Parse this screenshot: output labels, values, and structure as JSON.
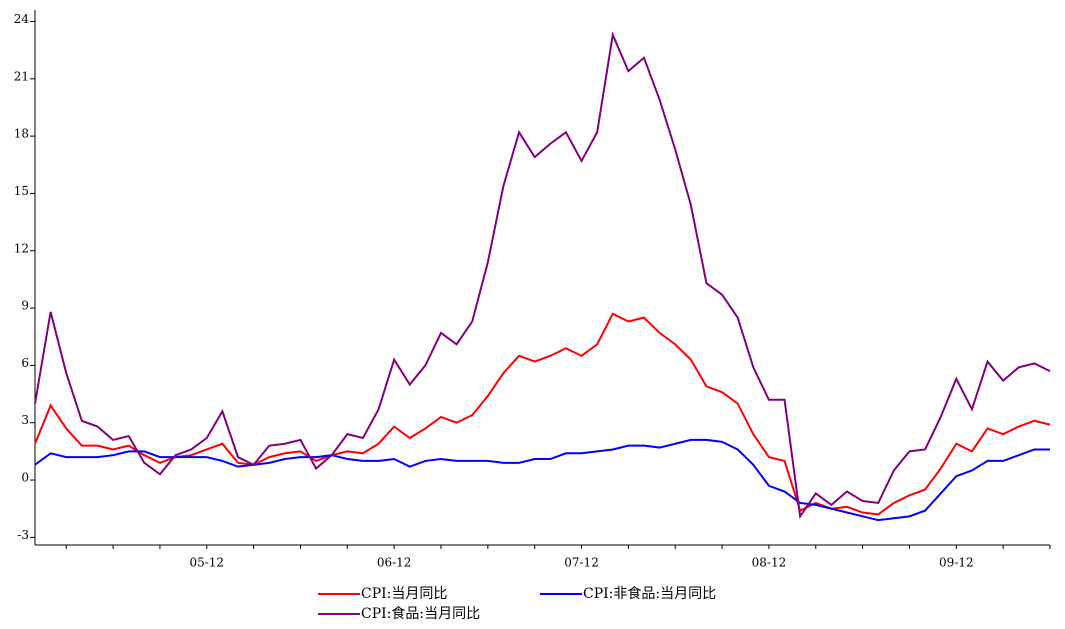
{
  "chart_data": {
    "type": "line",
    "categories": [
      null,
      null,
      null,
      null,
      null,
      null,
      null,
      null,
      null,
      null,
      null,
      "05-12",
      null,
      null,
      null,
      null,
      null,
      null,
      null,
      null,
      null,
      null,
      null,
      "06-12",
      null,
      null,
      null,
      null,
      null,
      null,
      null,
      null,
      null,
      null,
      null,
      "07-12",
      null,
      null,
      null,
      null,
      null,
      null,
      null,
      null,
      null,
      null,
      null,
      "08-12",
      null,
      null,
      null,
      null,
      null,
      null,
      null,
      null,
      null,
      null,
      null,
      "09-12",
      null,
      null,
      null,
      null,
      null,
      null
    ],
    "series": [
      {
        "name": "CPI:当月同比",
        "color": "#ff0000",
        "values": [
          1.9,
          3.9,
          2.7,
          1.8,
          1.8,
          1.6,
          1.8,
          1.3,
          0.9,
          1.2,
          1.3,
          1.6,
          1.9,
          0.9,
          0.8,
          1.2,
          1.4,
          1.5,
          1.0,
          1.3,
          1.5,
          1.4,
          1.9,
          2.8,
          2.2,
          2.7,
          3.3,
          3.0,
          3.4,
          4.4,
          5.6,
          6.5,
          6.2,
          6.5,
          6.9,
          6.5,
          7.1,
          8.7,
          8.3,
          8.5,
          7.7,
          7.1,
          6.3,
          4.9,
          4.6,
          4.0,
          2.4,
          1.2,
          1.0,
          -1.6,
          -1.2,
          -1.5,
          -1.4,
          -1.7,
          -1.8,
          -1.2,
          -0.8,
          -0.5,
          0.6,
          1.9,
          1.5,
          2.7,
          2.4,
          2.8,
          3.1,
          2.9
        ]
      },
      {
        "name": "CPI:非食品:当月同比",
        "color": "#0000ff",
        "values": [
          0.8,
          1.4,
          1.2,
          1.2,
          1.2,
          1.3,
          1.5,
          1.5,
          1.2,
          1.2,
          1.2,
          1.2,
          1.0,
          0.7,
          0.8,
          0.9,
          1.1,
          1.2,
          1.2,
          1.3,
          1.1,
          1.0,
          1.0,
          1.1,
          0.7,
          1.0,
          1.1,
          1.0,
          1.0,
          1.0,
          0.9,
          0.9,
          1.1,
          1.1,
          1.4,
          1.4,
          1.5,
          1.6,
          1.8,
          1.8,
          1.7,
          1.9,
          2.1,
          2.1,
          2.0,
          1.6,
          0.8,
          -0.3,
          -0.6,
          -1.2,
          -1.3,
          -1.5,
          -1.7,
          -1.9,
          -2.1,
          -2.0,
          -1.9,
          -1.6,
          -0.7,
          0.2,
          0.5,
          1.0,
          1.0,
          1.3,
          1.6,
          1.6
        ]
      },
      {
        "name": "CPI:食品:当月同比",
        "color": "#800080",
        "values": [
          4.0,
          8.8,
          5.6,
          3.1,
          2.8,
          2.1,
          2.3,
          0.9,
          0.3,
          1.3,
          1.6,
          2.2,
          3.6,
          1.2,
          0.8,
          1.8,
          1.9,
          2.1,
          0.6,
          1.3,
          2.4,
          2.2,
          3.7,
          6.3,
          5.0,
          6.0,
          7.7,
          7.1,
          8.3,
          11.4,
          15.4,
          18.2,
          16.9,
          17.6,
          18.2,
          16.7,
          18.2,
          23.3,
          21.4,
          22.1,
          19.9,
          17.3,
          14.4,
          10.3,
          9.7,
          8.5,
          5.9,
          4.2,
          4.2,
          -1.9,
          -0.7,
          -1.3,
          -0.6,
          -1.1,
          -1.2,
          0.5,
          1.5,
          1.6,
          3.3,
          5.3,
          3.7,
          6.2,
          5.2,
          5.9,
          6.1,
          5.7
        ]
      }
    ],
    "ylim": [
      -3.4,
      24.6
    ],
    "yticks": [
      -3,
      0,
      3,
      6,
      9,
      12,
      15,
      18,
      21,
      24
    ]
  }
}
